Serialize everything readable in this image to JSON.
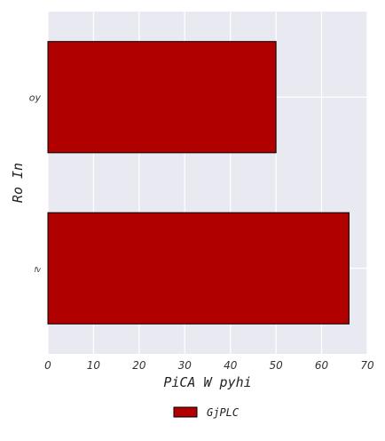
{
  "chart_data": {
    "type": "bar",
    "orientation": "horizontal",
    "categories": [
      "fv",
      "oy"
    ],
    "series": [
      {
        "name": "GjPLC",
        "values": [
          66,
          50
        ],
        "color": "#b00000"
      }
    ],
    "xlabel": "PiCA W  pyhi",
    "ylabel": "Ro In",
    "xlim": [
      0,
      70
    ],
    "xticks": [
      0,
      10,
      20,
      30,
      40,
      50,
      60,
      70
    ],
    "grid": true,
    "legend": "bottom-center"
  },
  "colors": {
    "plot_background": "#e9e9f1",
    "grid": "#ffffff",
    "bar_edge": "#000000"
  }
}
